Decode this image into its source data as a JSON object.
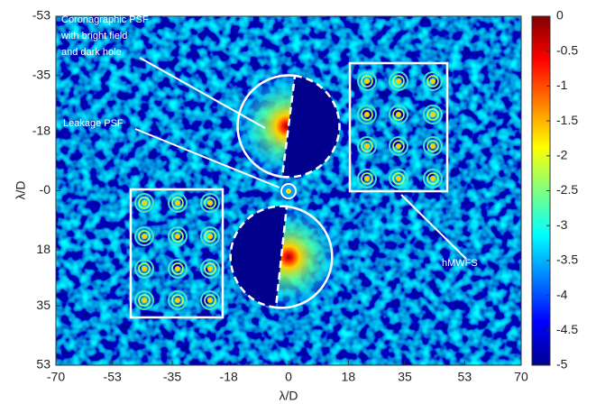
{
  "chart_data": {
    "type": "image",
    "xlabel": "λ/D",
    "ylabel": "λ/D",
    "xlim": [
      -70,
      70
    ],
    "xticks": [
      -70,
      -53,
      -35,
      -18,
      0,
      18,
      35,
      53,
      70
    ],
    "ylim": [
      -53,
      53
    ],
    "y_reversed": true,
    "yticks": [
      -53,
      -35,
      -18,
      {
        "value": 0,
        "label": "-0"
      },
      18,
      35,
      53
    ],
    "colorbar": {
      "colormap": "jet",
      "clim": [
        -5,
        0
      ],
      "ticks": [
        0,
        -0.5,
        -1,
        -1.5,
        -2,
        -2.5,
        -3,
        -3.5,
        -4,
        -4.5,
        -5
      ]
    },
    "annotations": [
      [
        "Coronagraphic PSF",
        "with bright field",
        "and dark hole"
      ],
      [
        "Leakage PSF"
      ],
      [
        "hMWFS"
      ]
    ]
  }
}
